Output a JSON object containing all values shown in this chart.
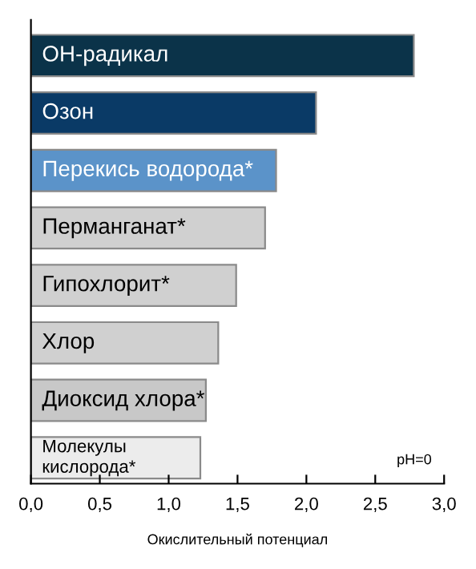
{
  "chart_data": {
    "type": "bar",
    "orientation": "horizontal",
    "xlabel": "Окислительный потенциал",
    "categories": [
      "OH-радикал",
      "Озон",
      "Перекись водорода*",
      "Перманганат*",
      "Гипохлорит*",
      "Хлор",
      "Диоксид хлора*",
      "Молекулы\nкислорода*"
    ],
    "values": [
      2.78,
      2.07,
      1.78,
      1.7,
      1.49,
      1.36,
      1.27,
      1.23
    ],
    "colors": [
      "#0b3349",
      "#0a3a66",
      "#5b93c9",
      "#d0d0d0",
      "#d0d0d0",
      "#d0d0d0",
      "#c8c8c8",
      "#ececec"
    ],
    "xlim": [
      0,
      3.0
    ],
    "xticks": [
      {
        "value": 0,
        "label": "0,0"
      },
      {
        "value": 0.5,
        "label": "0,5"
      },
      {
        "value": 1.0,
        "label": "1,0"
      },
      {
        "value": 1.5,
        "label": "1,5"
      },
      {
        "value": 2.0,
        "label": "2,0"
      },
      {
        "value": 2.5,
        "label": "2,5"
      },
      {
        "value": 3.0,
        "label": "3,0"
      }
    ],
    "annotations": [
      "pH=0"
    ],
    "grid": false,
    "legend": false
  }
}
